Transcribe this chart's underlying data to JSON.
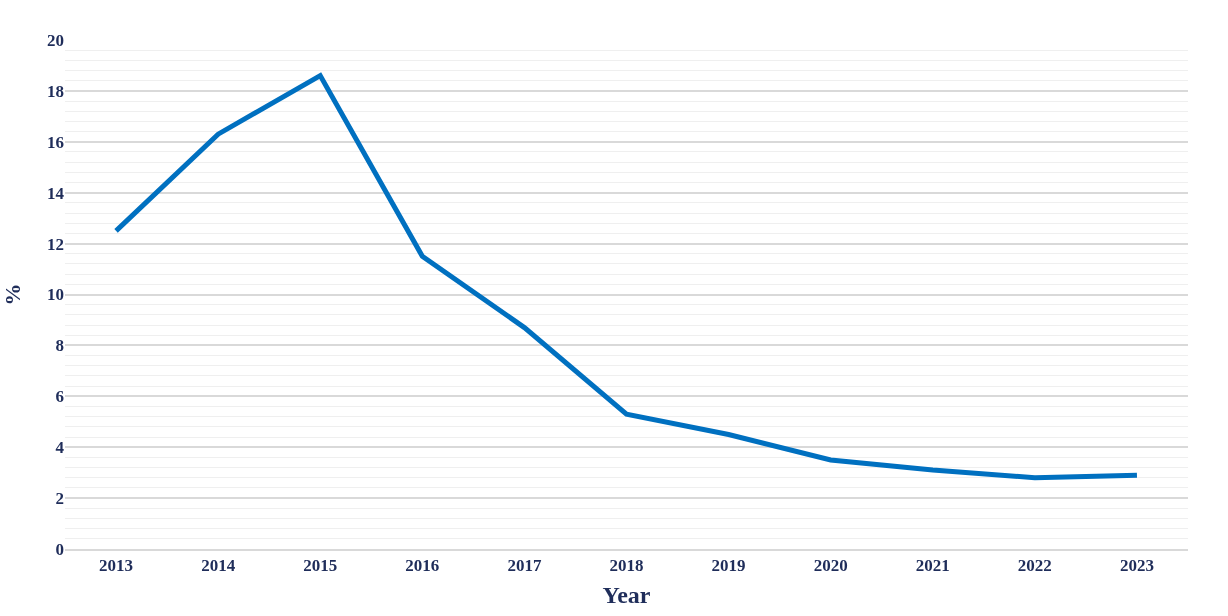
{
  "chart_data": {
    "type": "line",
    "xlabel": "Year",
    "ylabel": "%",
    "categories": [
      "2013",
      "2014",
      "2015",
      "2016",
      "2017",
      "2018",
      "2019",
      "2020",
      "2021",
      "2022",
      "2023"
    ],
    "series": [
      {
        "color": "#0070c0",
        "values": [
          12.5,
          16.3,
          18.6,
          11.5,
          8.7,
          5.3,
          4.5,
          3.5,
          3.1,
          2.8,
          2.9
        ]
      }
    ],
    "ylim": [
      0,
      20
    ],
    "yticks": [
      0,
      {
        "value": 0.4,
        "label": null
      },
      {
        "value": 0.8,
        "label": null
      },
      {
        "value": 1.2,
        "label": null
      },
      {
        "value": 1.6,
        "label": null
      },
      2,
      {
        "value": 2.4,
        "label": null
      },
      {
        "value": 2.8,
        "label": null
      },
      {
        "value": 3.2,
        "label": null
      },
      {
        "value": 3.6,
        "label": null
      },
      4,
      {
        "value": 4.4,
        "label": null
      },
      {
        "value": 4.8,
        "label": null
      },
      {
        "value": 5.2,
        "label": null
      },
      {
        "value": 5.6,
        "label": null
      },
      6,
      {
        "value": 6.4,
        "label": null
      },
      {
        "value": 6.8,
        "label": null
      },
      {
        "value": 7.2,
        "label": null
      },
      {
        "value": 7.6,
        "label": null
      },
      8,
      {
        "value": 8.4,
        "label": null
      },
      {
        "value": 8.8,
        "label": null
      },
      {
        "value": 9.2,
        "label": null
      },
      {
        "value": 9.6,
        "label": null
      },
      10,
      {
        "value": 10.4,
        "label": null
      },
      {
        "value": 10.8,
        "label": null
      },
      {
        "value": 11.2,
        "label": null
      },
      {
        "value": 11.6,
        "label": null
      },
      12,
      {
        "value": 12.4,
        "label": null
      },
      {
        "value": 12.8,
        "label": null
      },
      {
        "value": 13.2,
        "label": null
      },
      {
        "value": 13.6,
        "label": null
      },
      14,
      {
        "value": 14.4,
        "label": null
      },
      {
        "value": 14.8,
        "label": null
      },
      {
        "value": 15.2,
        "label": null
      },
      {
        "value": 15.6,
        "label": null
      },
      16,
      {
        "value": 16.4,
        "label": null
      },
      {
        "value": 16.8,
        "label": null
      },
      {
        "value": 17.2,
        "label": null
      },
      {
        "value": 17.6,
        "label": null
      },
      18,
      {
        "value": 18.4,
        "label": null
      },
      {
        "value": 18.8,
        "label": null
      },
      {
        "value": 19.2,
        "label": null
      },
      {
        "value": 19.6,
        "label": null
      },
      20
    ],
    "grid": "y",
    "marker": "none",
    "line_style": "solid"
  }
}
